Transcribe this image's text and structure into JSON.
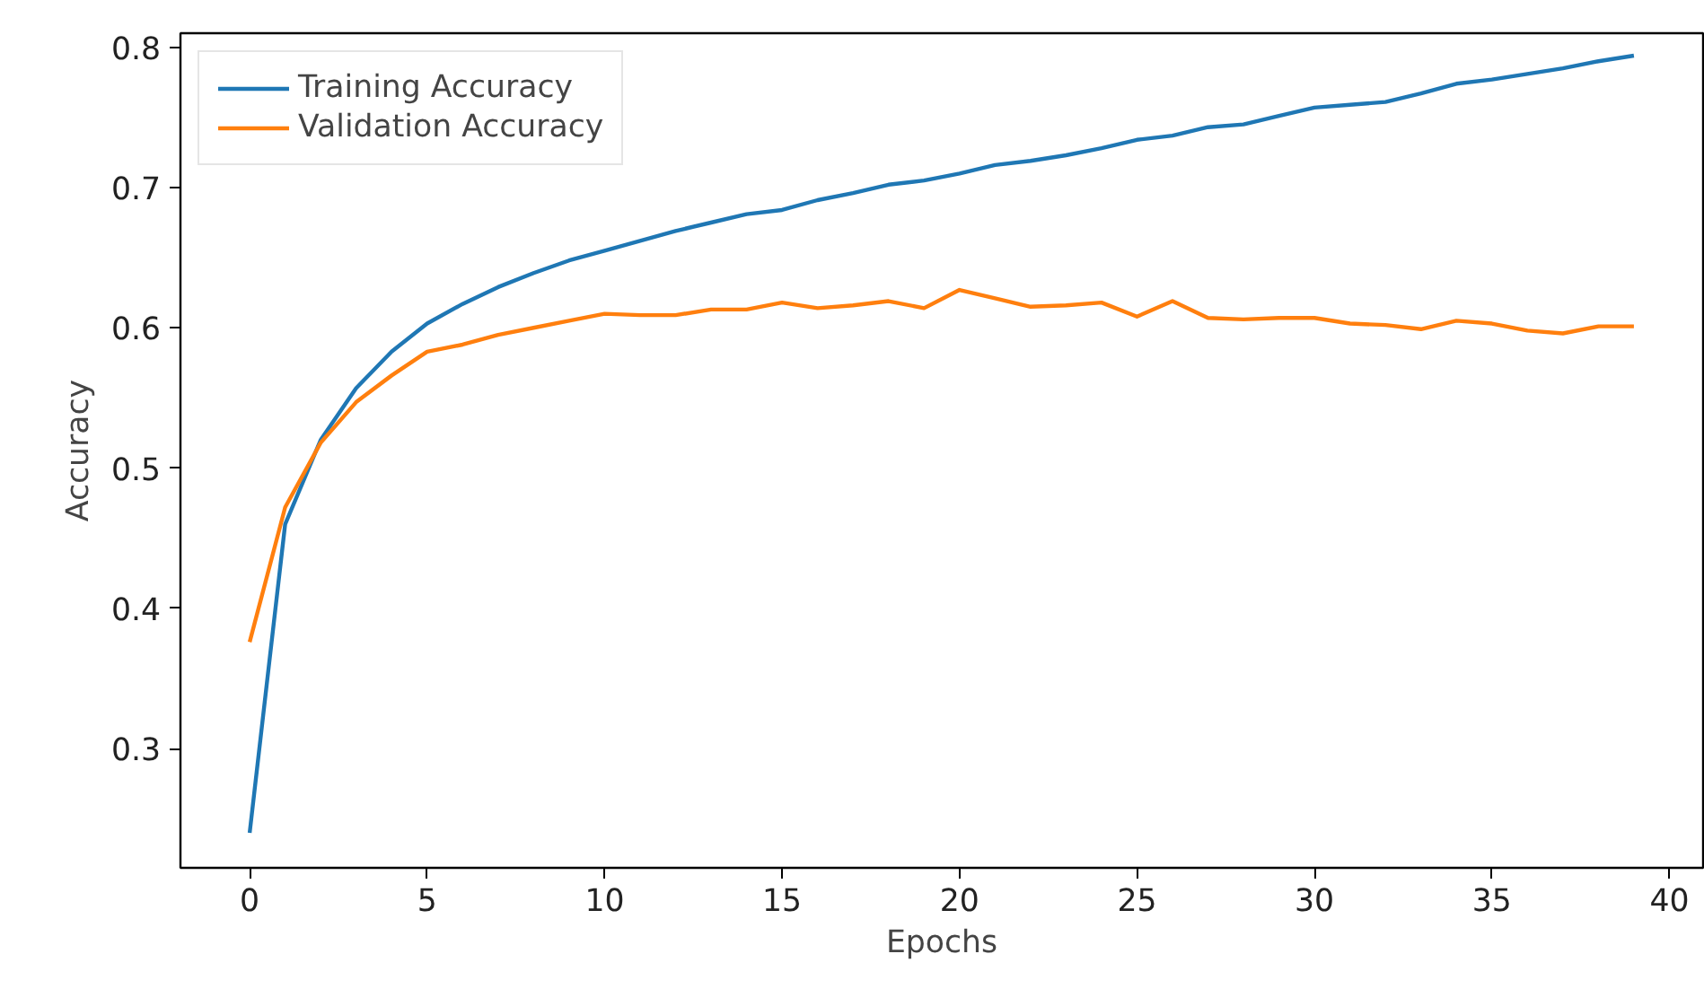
{
  "chart_data": {
    "type": "line",
    "xlabel": "Epochs",
    "ylabel": "Accuracy",
    "x": [
      0,
      1,
      2,
      3,
      4,
      5,
      6,
      7,
      8,
      9,
      10,
      11,
      12,
      13,
      14,
      15,
      16,
      17,
      18,
      19,
      20,
      21,
      22,
      23,
      24,
      25,
      26,
      27,
      28,
      29,
      30,
      31,
      32,
      33,
      34,
      35,
      36,
      37,
      38,
      39
    ],
    "series": [
      {
        "name": "Training Accuracy",
        "color": "#1f77b4",
        "values": [
          0.24,
          0.46,
          0.52,
          0.557,
          0.583,
          0.603,
          0.617,
          0.629,
          0.639,
          0.648,
          0.655,
          0.662,
          0.669,
          0.675,
          0.681,
          0.684,
          0.691,
          0.696,
          0.702,
          0.705,
          0.71,
          0.716,
          0.719,
          0.723,
          0.728,
          0.734,
          0.737,
          0.743,
          0.745,
          0.751,
          0.757,
          0.759,
          0.761,
          0.767,
          0.774,
          0.777,
          0.781,
          0.785,
          0.79,
          0.794
        ]
      },
      {
        "name": "Validation Accuracy",
        "color": "#ff7f0e",
        "values": [
          0.376,
          0.472,
          0.518,
          0.547,
          0.566,
          0.583,
          0.588,
          0.595,
          0.6,
          0.605,
          0.61,
          0.609,
          0.609,
          0.613,
          0.613,
          0.618,
          0.614,
          0.616,
          0.619,
          0.614,
          0.627,
          0.621,
          0.615,
          0.616,
          0.618,
          0.608,
          0.619,
          0.607,
          0.606,
          0.607,
          0.607,
          0.603,
          0.602,
          0.599,
          0.605,
          0.603,
          0.598,
          0.596,
          0.601,
          0.601
        ]
      }
    ],
    "xlim": [
      -1.95,
      40.95
    ],
    "ylim": [
      0.215,
      0.81
    ],
    "xticks": [
      0,
      5,
      10,
      15,
      20,
      25,
      30,
      35,
      40
    ],
    "yticks": [
      {
        "value": 0.3,
        "label": "0.3"
      },
      {
        "value": 0.4,
        "label": "0.4"
      },
      {
        "value": 0.5,
        "label": "0.5"
      },
      {
        "value": 0.6,
        "label": "0.6"
      },
      {
        "value": 0.7,
        "label": "0.7"
      },
      {
        "value": 0.8,
        "label": "0.8"
      }
    ],
    "grid": false,
    "legend": "top left",
    "marker": "none",
    "line_style": "solid"
  }
}
